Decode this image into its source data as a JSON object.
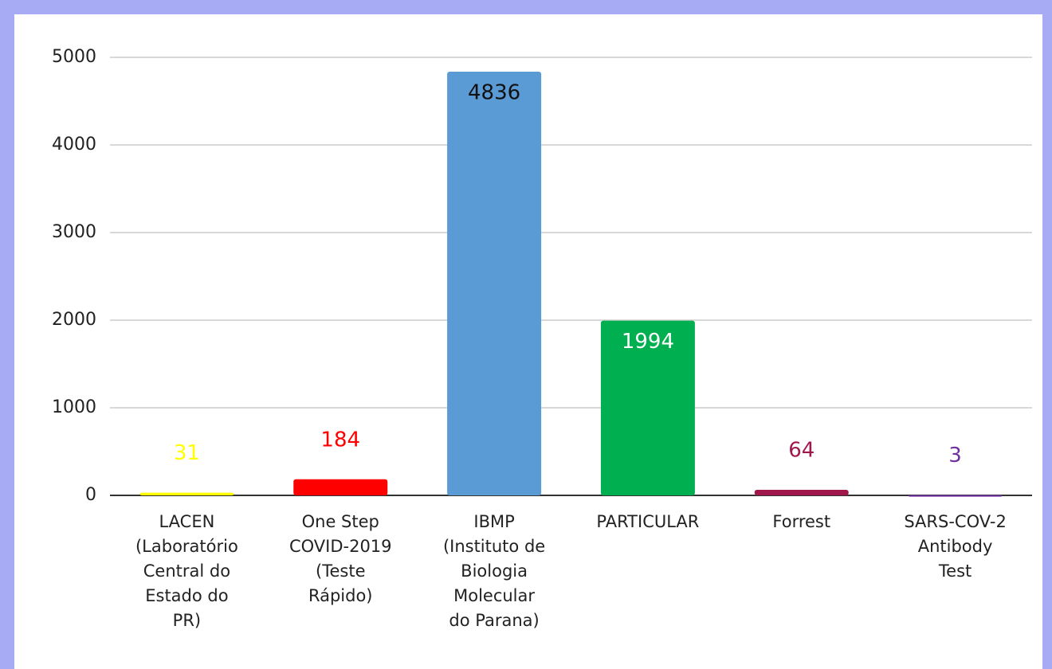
{
  "chart_data": {
    "type": "bar",
    "categories": [
      "LACEN\n(Laboratório\nCentral do\nEstado do\nPR)",
      "One Step\nCOVID-2019\n(Teste\nRápido)",
      "IBMP\n(Instituto de\nBiologia\nMolecular\ndo Parana)",
      "PARTICULAR",
      "Forrest",
      "SARS-COV-2\nAntibody\nTest"
    ],
    "values": [
      31,
      184,
      4836,
      1994,
      64,
      3
    ],
    "colors": [
      "#ffff00",
      "#ff0000",
      "#5b9bd5",
      "#00b050",
      "#a0174c",
      "#7030a0"
    ],
    "label_colors": [
      "#ffff00",
      "#ff0000",
      "#111111",
      "#ffffff",
      "#a0174c",
      "#7030a0"
    ],
    "ylim": [
      0,
      5000
    ],
    "yticks": [
      0,
      1000,
      2000,
      3000,
      4000,
      5000
    ],
    "grid": true
  }
}
